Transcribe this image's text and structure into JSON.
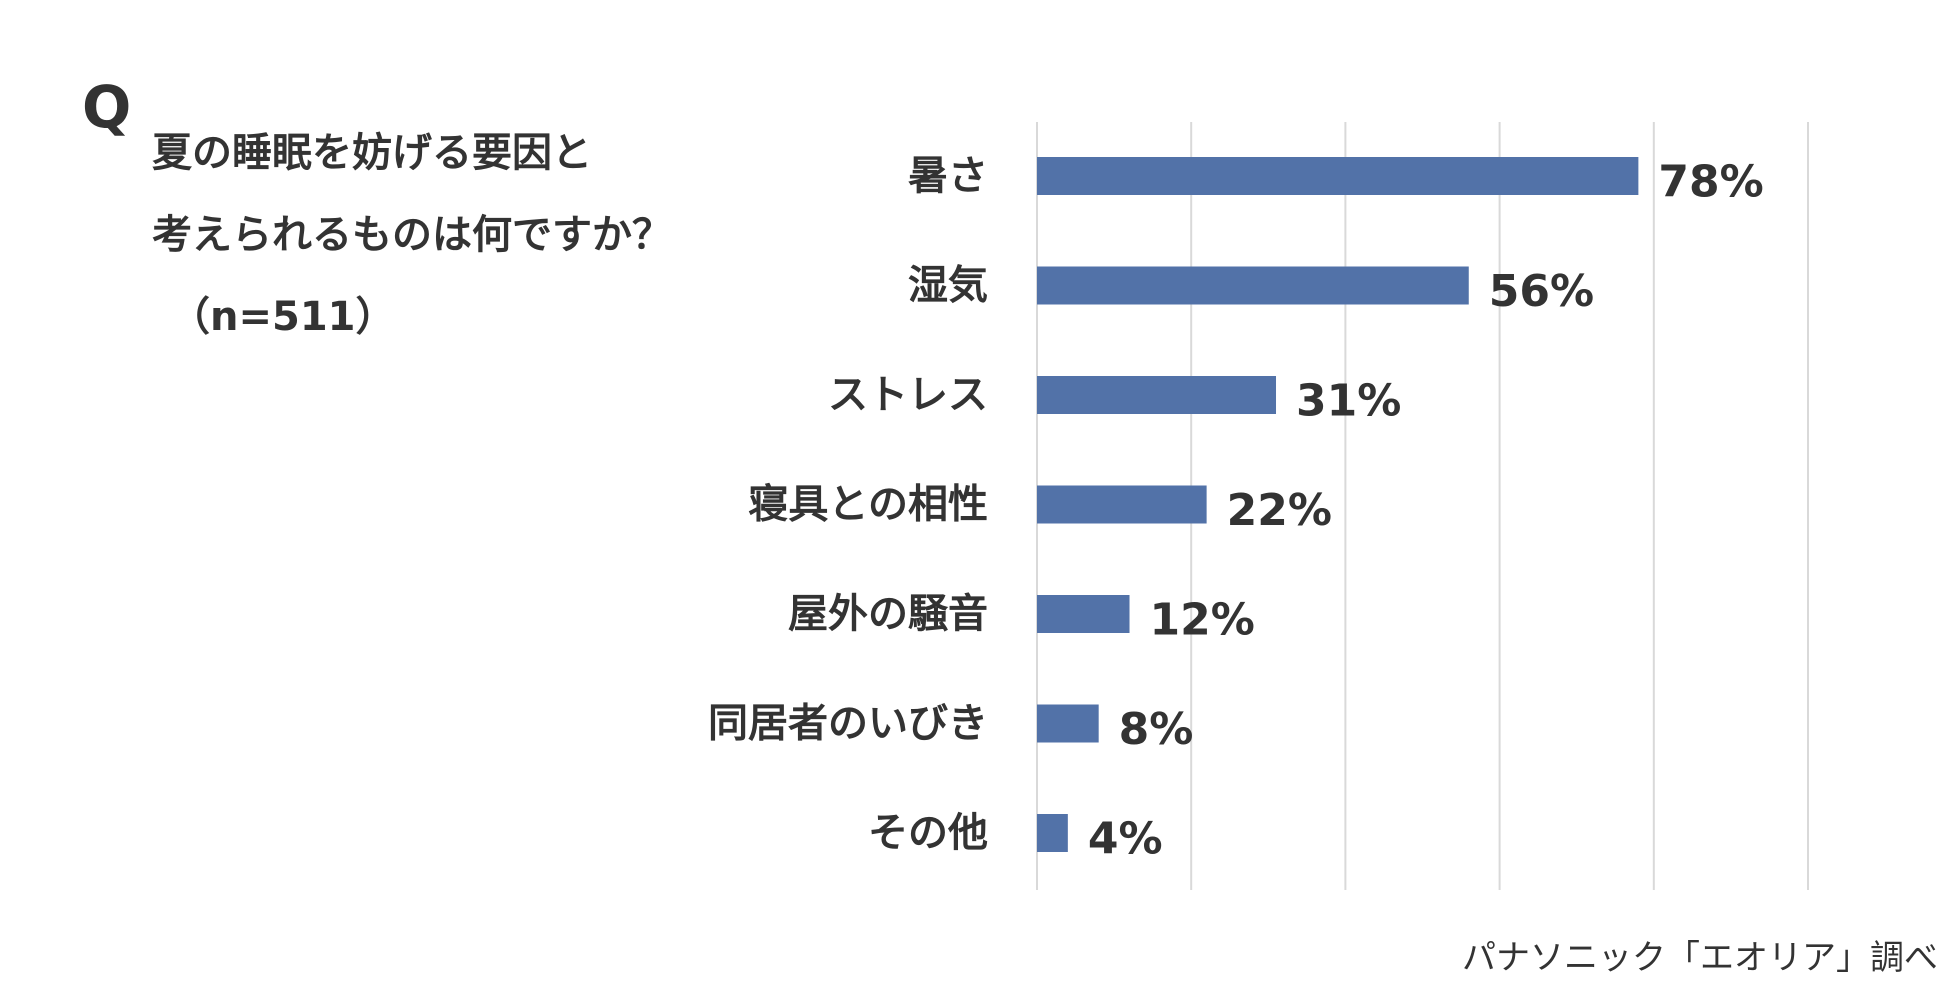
{
  "question": {
    "mark": "Q",
    "line1": "夏の睡眠を妨げる要因と",
    "line2": "考えられるものは何ですか？",
    "sample": "（n=511）"
  },
  "source": "パナソニック「エオリア」調べ",
  "colors": {
    "bar": "#5272a8",
    "grid": "#d9d9d9",
    "text": "#333333"
  },
  "chart_data": {
    "type": "bar",
    "orientation": "horizontal",
    "categories": [
      "暑さ",
      "湿気",
      "ストレス",
      "寝具との相性",
      "屋外の騒音",
      "同居者のいびき",
      "その他"
    ],
    "values": [
      78,
      56,
      31,
      22,
      12,
      8,
      4
    ],
    "value_labels": [
      "78%",
      "56%",
      "31%",
      "22%",
      "12%",
      "8%",
      "4%"
    ],
    "xlim": [
      0,
      100
    ],
    "grid": true,
    "legend": "none"
  }
}
